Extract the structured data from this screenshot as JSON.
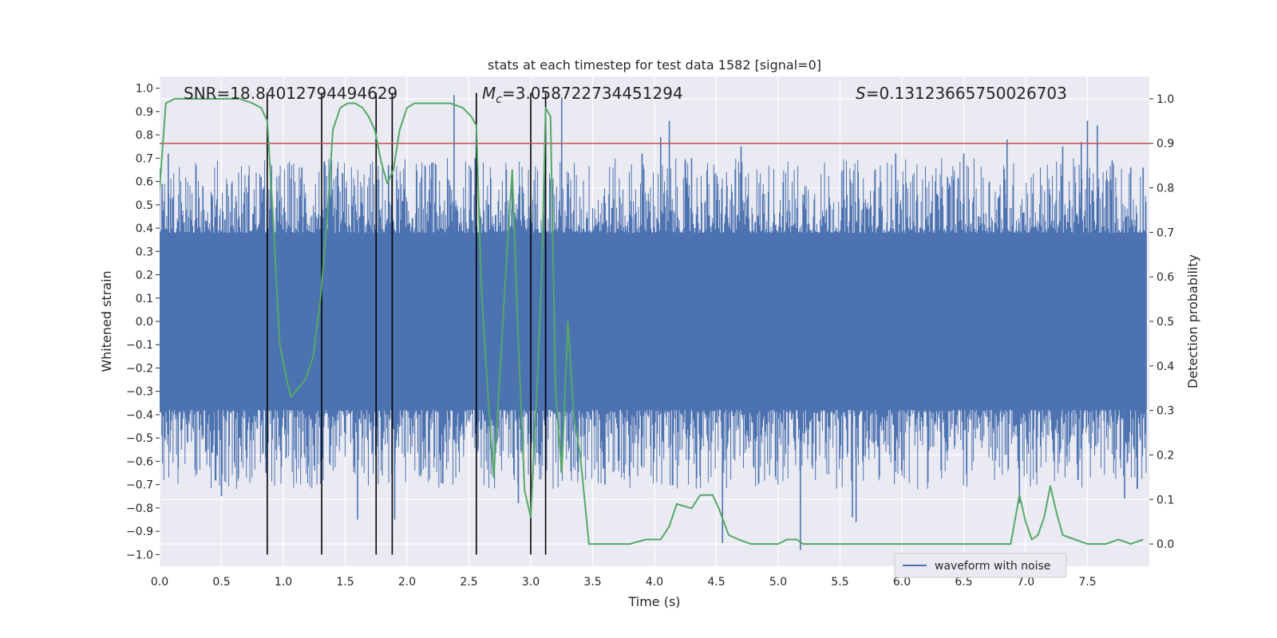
{
  "chart_data": {
    "type": "line",
    "title": "stats at each timestep for test data 1582 [signal=0]",
    "xlabel": "Time (s)",
    "ylabel_left": "Whitened strain",
    "ylabel_right": "Detection probability",
    "xlim": [
      0.0,
      8.0
    ],
    "ylim_left": [
      -1.05,
      1.05
    ],
    "ylim_right": [
      -0.05,
      1.05
    ],
    "x_ticks": [
      0.0,
      0.5,
      1.0,
      1.5,
      2.0,
      2.5,
      3.0,
      3.5,
      4.0,
      4.5,
      5.0,
      5.5,
      6.0,
      6.5,
      7.0,
      7.5
    ],
    "x_tick_labels": [
      "0.0",
      "0.5",
      "1.0",
      "1.5",
      "2.0",
      "2.5",
      "3.0",
      "3.5",
      "4.0",
      "4.5",
      "5.0",
      "5.5",
      "6.0",
      "6.5",
      "7.0",
      "7.5"
    ],
    "y_left_ticks": [
      1.0,
      0.9,
      0.8,
      0.7,
      0.6,
      0.5,
      0.4,
      0.3,
      0.2,
      0.1,
      0.0,
      -0.1,
      -0.2,
      -0.3,
      -0.4,
      -0.5,
      -0.6,
      -0.7,
      -0.8,
      -0.9,
      -1.0
    ],
    "y_left_tick_labels": [
      "1.0",
      "0.9",
      "0.8",
      "0.7",
      "0.6",
      "0.5",
      "0.4",
      "0.3",
      "0.2",
      "0.1",
      "0.0",
      "−0.1",
      "−0.2",
      "−0.3",
      "−0.4",
      "−0.5",
      "−0.6",
      "−0.7",
      "−0.8",
      "−0.9",
      "−1.0"
    ],
    "y_right_ticks": [
      1.0,
      0.9,
      0.8,
      0.7,
      0.6,
      0.5,
      0.4,
      0.3,
      0.2,
      0.1,
      0.0
    ],
    "y_right_tick_labels": [
      "1.0",
      "0.9",
      "0.8",
      "0.7",
      "0.6",
      "0.5",
      "0.4",
      "0.3",
      "0.2",
      "0.1",
      "0.0"
    ],
    "grid": true,
    "annotations": [
      {
        "id": "snr",
        "text": "SNR=18.84012794494629"
      },
      {
        "id": "mc",
        "text": "Mc=3.058722734451294",
        "symbol": "M",
        "subscript": "c",
        "rest": "=3.058722734451294"
      },
      {
        "id": "s",
        "text": "S=0.13123665750026703",
        "symbol": "S",
        "rest": "=0.13123665750026703"
      }
    ],
    "threshold": {
      "axis": "right",
      "value": 0.9,
      "color": "#c44e52"
    },
    "vertical_markers": {
      "x": [
        0.87,
        1.31,
        1.75,
        1.88,
        2.56,
        3.0,
        3.12
      ],
      "y_range_left": [
        -1.0,
        0.98
      ],
      "color": "#000000"
    },
    "series": [
      {
        "name": "waveform with noise",
        "axis": "left",
        "color": "#4c72b0",
        "band_core": 0.38,
        "x_range": [
          0.0,
          7.98
        ],
        "peaks": [
          [
            0.02,
            0.59
          ],
          [
            0.07,
            0.72
          ],
          [
            0.15,
            -0.63
          ],
          [
            0.35,
            0.58
          ],
          [
            0.45,
            -0.68
          ],
          [
            0.5,
            -0.75
          ],
          [
            0.82,
            0.62
          ],
          [
            0.86,
            -0.65
          ],
          [
            1.15,
            0.66
          ],
          [
            1.25,
            -0.62
          ],
          [
            1.6,
            -0.85
          ],
          [
            1.75,
            0.66
          ],
          [
            1.85,
            0.67
          ],
          [
            1.9,
            -0.85
          ],
          [
            2.2,
            0.68
          ],
          [
            2.38,
            0.97
          ],
          [
            2.55,
            0.7
          ],
          [
            2.85,
            0.62
          ],
          [
            2.9,
            -0.78
          ],
          [
            3.25,
            0.96
          ],
          [
            3.6,
            -0.7
          ],
          [
            3.9,
            0.72
          ],
          [
            4.05,
            0.79
          ],
          [
            4.12,
            0.86
          ],
          [
            4.3,
            0.7
          ],
          [
            4.55,
            -0.95
          ],
          [
            4.7,
            0.75
          ],
          [
            5.18,
            -0.98
          ],
          [
            5.6,
            -0.84
          ],
          [
            5.63,
            -0.86
          ],
          [
            5.95,
            0.72
          ],
          [
            6.5,
            0.72
          ],
          [
            6.85,
            0.78
          ],
          [
            6.95,
            -0.78
          ],
          [
            7.3,
            0.75
          ],
          [
            7.45,
            0.77
          ],
          [
            7.5,
            0.86
          ],
          [
            7.58,
            0.84
          ],
          [
            7.7,
            0.69
          ],
          [
            7.85,
            0.66
          ],
          [
            7.95,
            0.66
          ],
          [
            7.8,
            -0.76
          ]
        ]
      },
      {
        "name": "detection probability",
        "axis": "right",
        "color": "#55a868",
        "x": [
          0.0,
          0.05,
          0.12,
          0.25,
          0.4,
          0.55,
          0.65,
          0.75,
          0.82,
          0.87,
          0.92,
          0.97,
          1.02,
          1.06,
          1.12,
          1.18,
          1.24,
          1.3,
          1.36,
          1.4,
          1.46,
          1.52,
          1.58,
          1.64,
          1.69,
          1.74,
          1.79,
          1.84,
          1.89,
          1.94,
          2.0,
          2.06,
          2.15,
          2.25,
          2.35,
          2.45,
          2.52,
          2.56,
          2.6,
          2.65,
          2.7,
          2.75,
          2.8,
          2.85,
          2.9,
          2.95,
          3.0,
          3.05,
          3.09,
          3.12,
          3.16,
          3.2,
          3.25,
          3.3,
          3.35,
          3.4,
          3.47,
          3.55,
          3.65,
          3.8,
          3.93,
          4.0,
          4.05,
          4.12,
          4.18,
          4.3,
          4.37,
          4.42,
          4.47,
          4.52,
          4.6,
          4.68,
          4.78,
          4.9,
          5.0,
          5.07,
          5.15,
          5.2,
          5.3,
          5.38,
          5.48,
          5.6,
          5.8,
          6.0,
          6.2,
          6.4,
          6.6,
          6.75,
          6.82,
          6.88,
          6.95,
          7.0,
          7.05,
          7.1,
          7.15,
          7.2,
          7.25,
          7.3,
          7.4,
          7.5,
          7.55,
          7.65,
          7.75,
          7.85,
          7.95
        ],
        "y": [
          0.8,
          0.99,
          1.0,
          1.0,
          1.0,
          1.0,
          1.0,
          0.99,
          0.98,
          0.95,
          0.72,
          0.45,
          0.38,
          0.33,
          0.35,
          0.37,
          0.42,
          0.55,
          0.75,
          0.93,
          0.98,
          0.99,
          0.99,
          0.98,
          0.96,
          0.93,
          0.86,
          0.81,
          0.84,
          0.93,
          0.98,
          0.99,
          0.99,
          0.99,
          0.99,
          0.98,
          0.96,
          0.94,
          0.58,
          0.35,
          0.15,
          0.38,
          0.62,
          0.84,
          0.45,
          0.12,
          0.06,
          0.35,
          0.62,
          0.98,
          0.96,
          0.35,
          0.16,
          0.5,
          0.28,
          0.2,
          0.0,
          0.0,
          0.0,
          0.0,
          0.01,
          0.01,
          0.01,
          0.04,
          0.09,
          0.08,
          0.11,
          0.11,
          0.11,
          0.08,
          0.02,
          0.01,
          0.0,
          0.0,
          0.0,
          0.01,
          0.01,
          0.0,
          0.0,
          0.0,
          0.0,
          0.0,
          0.0,
          0.0,
          0.0,
          0.0,
          0.0,
          0.0,
          0.0,
          0.0,
          0.11,
          0.05,
          0.01,
          0.02,
          0.06,
          0.13,
          0.07,
          0.02,
          0.01,
          0.0,
          0.0,
          0.0,
          0.01,
          0.0,
          0.01
        ]
      }
    ],
    "legend": {
      "placement": "lower-right-center",
      "entries": [
        "waveform with noise"
      ]
    }
  }
}
